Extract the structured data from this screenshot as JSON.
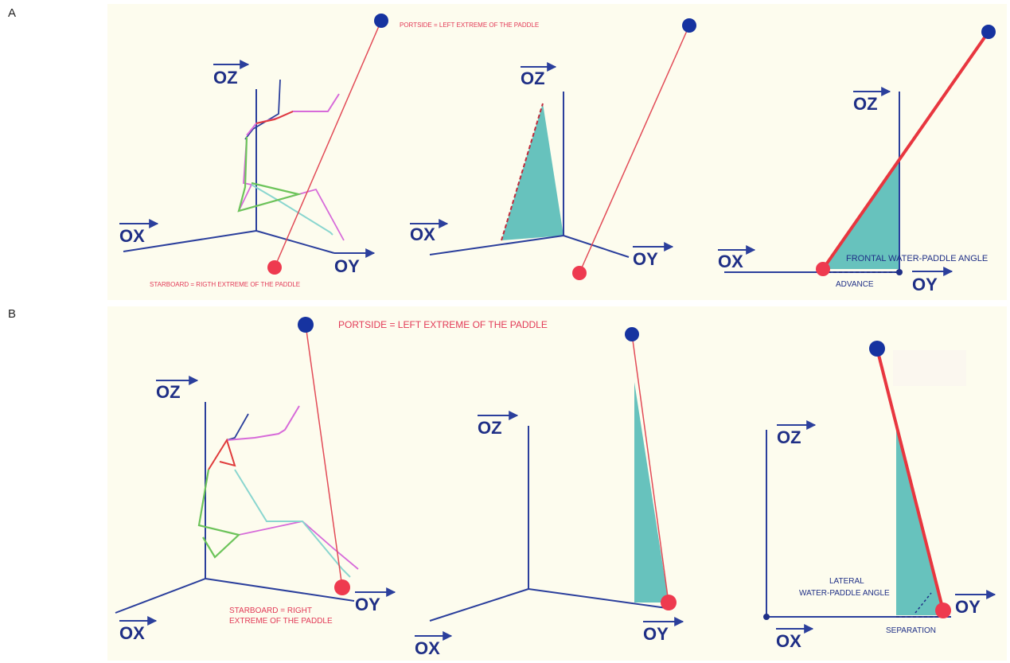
{
  "panels": {
    "a": {
      "label": "A",
      "portside_label": "PORTSIDE = LEFT EXTREME OF THE PADDLE",
      "starboard_label": "STARBOARD = RIGTH EXTREME OF THE PADDLE",
      "frontal_angle_label": "FRONTAL WATER-PADDLE ANGLE",
      "advance_label": "ADVANCE"
    },
    "b": {
      "label": "B",
      "portside_label": "PORTSIDE = LEFT EXTREME OF THE PADDLE",
      "starboard_label_line1": "STARBOARD = RIGHT",
      "starboard_label_line2": "EXTREME OF THE PADDLE",
      "lateral_angle_line1": "LATERAL",
      "lateral_angle_line2": "WATER-PADDLE ANGLE",
      "separation_label": "SEPARATION"
    }
  },
  "axes": {
    "ox": "OX",
    "oy": "OY",
    "oz": "OZ"
  },
  "colors": {
    "background": "#fdfcee",
    "axis": "#2b3f9c",
    "portside_marker": "#1633a0",
    "starboard_marker": "#ee3a4f",
    "paddle_line": "#e24b57",
    "shaded_area": "#67c2bd",
    "label_red": "#e23a57",
    "label_blue": "#1f2f86"
  }
}
